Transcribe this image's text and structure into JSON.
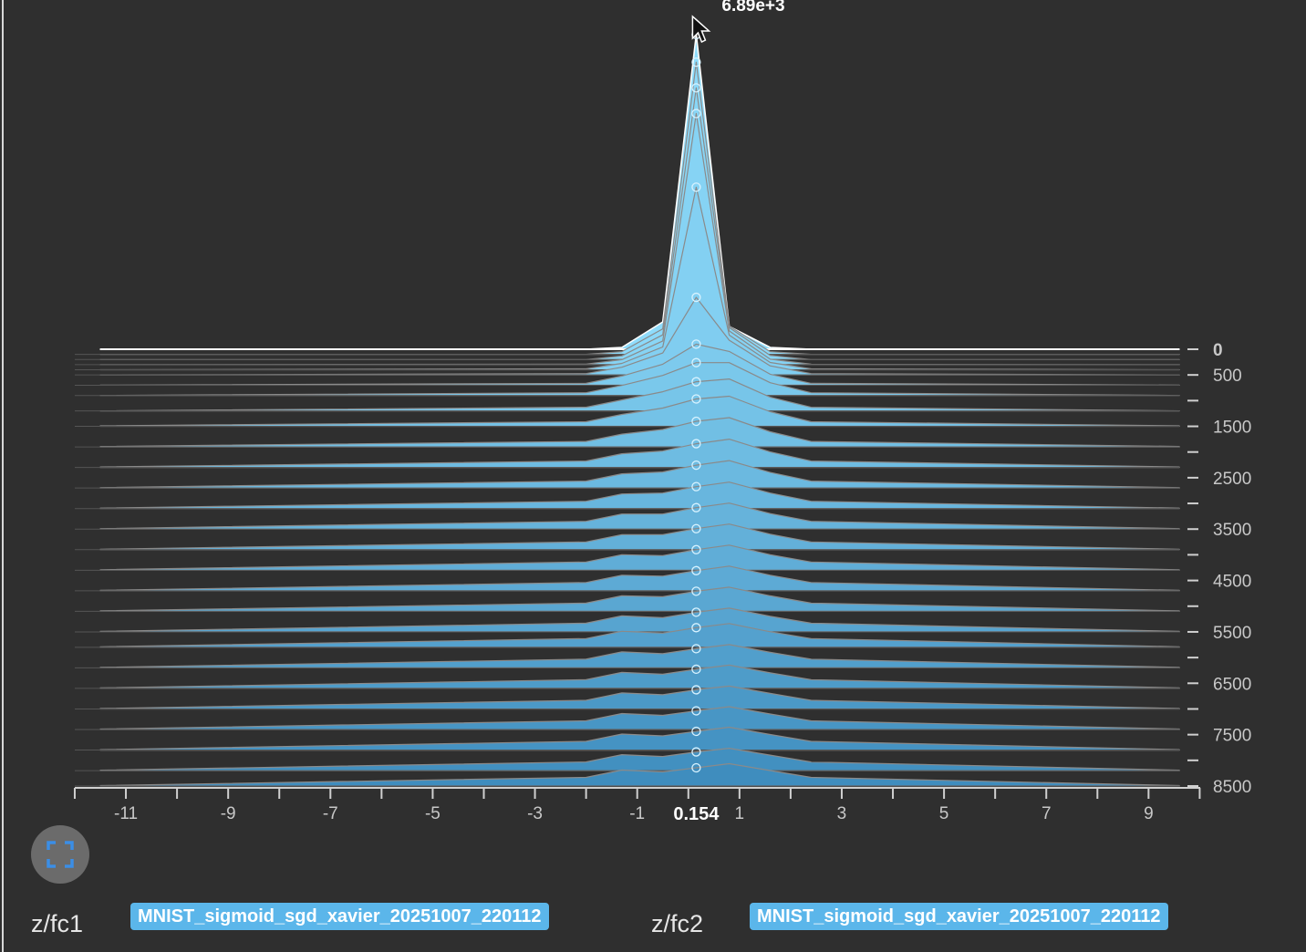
{
  "chart_data": {
    "type": "area",
    "title": "",
    "xlabel": "",
    "ylabel": "",
    "x_ticks": [
      -11,
      -9,
      -7,
      -5,
      -3,
      -1,
      1,
      3,
      5,
      7,
      9
    ],
    "x_range": [
      -11.5,
      9.6
    ],
    "y_ticks": [
      "0",
      "500",
      "1500",
      "2500",
      "3500",
      "4500",
      "5500",
      "6500",
      "7500",
      "8500"
    ],
    "step_range": [
      0,
      8500
    ],
    "hover": {
      "x_value": "0.154",
      "peak_value": "6.89e+3",
      "step": 0,
      "x": 0.154
    },
    "x": [
      -11.5,
      -2.0,
      -1.3,
      -0.5,
      0.154,
      0.8,
      1.6,
      2.4,
      9.6
    ],
    "series": [
      {
        "step": 0,
        "values": [
          0,
          0,
          40,
          600,
          6890,
          500,
          40,
          0,
          0
        ]
      },
      {
        "step": 100,
        "values": [
          0,
          0,
          60,
          560,
          6400,
          620,
          60,
          0,
          0
        ]
      },
      {
        "step": 200,
        "values": [
          0,
          0,
          80,
          540,
          5950,
          700,
          90,
          0,
          0
        ]
      },
      {
        "step": 300,
        "values": [
          0,
          10,
          110,
          520,
          5500,
          740,
          120,
          10,
          0
        ]
      },
      {
        "step": 400,
        "values": [
          0,
          20,
          140,
          500,
          4000,
          760,
          160,
          20,
          0
        ]
      },
      {
        "step": 500,
        "values": [
          0,
          30,
          170,
          480,
          1700,
          760,
          200,
          30,
          0
        ]
      },
      {
        "step": 700,
        "values": [
          0,
          40,
          200,
          460,
          900,
          740,
          240,
          40,
          0
        ]
      },
      {
        "step": 900,
        "values": [
          0,
          60,
          220,
          440,
          720,
          720,
          280,
          60,
          0
        ]
      },
      {
        "step": 1200,
        "values": [
          0,
          80,
          240,
          420,
          640,
          700,
          300,
          80,
          0
        ]
      },
      {
        "step": 1500,
        "values": [
          10,
          100,
          260,
          400,
          600,
          660,
          320,
          100,
          10
        ]
      },
      {
        "step": 1900,
        "values": [
          10,
          120,
          280,
          380,
          560,
          640,
          330,
          120,
          10
        ]
      },
      {
        "step": 2300,
        "values": [
          10,
          140,
          300,
          360,
          520,
          620,
          340,
          140,
          10
        ]
      },
      {
        "step": 2700,
        "values": [
          10,
          150,
          310,
          350,
          500,
          600,
          340,
          150,
          10
        ]
      },
      {
        "step": 3100,
        "values": [
          10,
          160,
          320,
          340,
          480,
          580,
          340,
          160,
          10
        ]
      },
      {
        "step": 3500,
        "values": [
          10,
          170,
          330,
          330,
          470,
          570,
          340,
          170,
          10
        ]
      },
      {
        "step": 3900,
        "values": [
          10,
          170,
          330,
          330,
          460,
          560,
          340,
          170,
          10
        ]
      },
      {
        "step": 4300,
        "values": [
          10,
          180,
          340,
          320,
          450,
          550,
          340,
          180,
          10
        ]
      },
      {
        "step": 4700,
        "values": [
          10,
          180,
          340,
          320,
          440,
          540,
          340,
          180,
          10
        ]
      },
      {
        "step": 5100,
        "values": [
          10,
          180,
          340,
          320,
          440,
          530,
          340,
          180,
          10
        ]
      },
      {
        "step": 5500,
        "values": [
          10,
          190,
          350,
          310,
          430,
          520,
          340,
          190,
          10
        ]
      },
      {
        "step": 5800,
        "values": [
          10,
          190,
          350,
          310,
          430,
          520,
          340,
          190,
          10
        ]
      },
      {
        "step": 6200,
        "values": [
          10,
          190,
          350,
          310,
          420,
          510,
          340,
          190,
          10
        ]
      },
      {
        "step": 6600,
        "values": [
          10,
          190,
          350,
          310,
          420,
          510,
          340,
          190,
          10
        ]
      },
      {
        "step": 7000,
        "values": [
          10,
          190,
          350,
          310,
          420,
          500,
          340,
          190,
          10
        ]
      },
      {
        "step": 7400,
        "values": [
          10,
          190,
          350,
          310,
          410,
          500,
          340,
          190,
          10
        ]
      },
      {
        "step": 7800,
        "values": [
          10,
          190,
          350,
          310,
          410,
          500,
          340,
          190,
          10
        ]
      },
      {
        "step": 8200,
        "values": [
          10,
          190,
          350,
          310,
          410,
          490,
          340,
          190,
          10
        ]
      },
      {
        "step": 8500,
        "values": [
          10,
          190,
          350,
          310,
          400,
          490,
          340,
          190,
          10
        ]
      }
    ]
  },
  "ui": {
    "fullscreen_icon": "fullscreen-icon",
    "cards": [
      {
        "title": "z/fc1",
        "run": "MNIST_sigmoid_sgd_xavier_20251007_220112"
      },
      {
        "title": "z/fc2",
        "run": "MNIST_sigmoid_sgd_xavier_20251007_220112"
      }
    ]
  },
  "colors": {
    "background": "#2f2f2f",
    "light_fill": "#8fdcfb",
    "dark_fill": "#3f8dbe",
    "chip": "#5bb6ea",
    "outline": "#8a8a8a"
  }
}
